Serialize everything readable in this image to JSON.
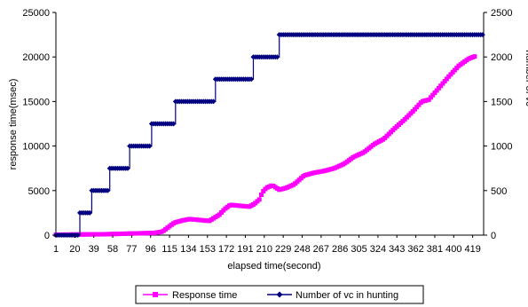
{
  "chart_data": {
    "type": "line",
    "title": "",
    "xlabel": "elapsed time(second)",
    "ylabel": "response time(msec)",
    "y2label": "number of vc",
    "x_range": [
      1,
      430
    ],
    "ylim": [
      0,
      25000
    ],
    "y2lim": [
      0,
      2500
    ],
    "y_ticks": [
      "0",
      "5000",
      "10000",
      "15000",
      "20000",
      "25000"
    ],
    "y2_ticks": [
      "0",
      "500",
      "1000",
      "1500",
      "2000",
      "2500"
    ],
    "x_tick_labels": [
      "1",
      "20",
      "39",
      "58",
      "77",
      "96",
      "115",
      "134",
      "153",
      "172",
      "191",
      "210",
      "229",
      "248",
      "267",
      "286",
      "305",
      "324",
      "343",
      "362",
      "381",
      "400",
      "419"
    ],
    "grid": false,
    "legend_position": "bottom",
    "series": [
      {
        "name": "Response time",
        "axis": "left",
        "color": "#ff00ff",
        "marker": "square",
        "x": [
          1,
          50,
          100,
          108,
          115,
          120,
          128,
          135,
          145,
          155,
          165,
          170,
          176,
          185,
          195,
          200,
          205,
          208,
          212,
          218,
          225,
          232,
          240,
          250,
          260,
          270,
          280,
          290,
          300,
          310,
          320,
          330,
          340,
          350,
          360,
          368,
          375,
          385,
          395,
          405,
          415,
          422
        ],
        "values": [
          50,
          100,
          250,
          400,
          1000,
          1400,
          1650,
          1800,
          1700,
          1600,
          2300,
          2900,
          3400,
          3300,
          3200,
          3500,
          4000,
          4800,
          5300,
          5600,
          5100,
          5300,
          5700,
          6700,
          7000,
          7200,
          7500,
          8000,
          8800,
          9300,
          10200,
          10800,
          11900,
          12900,
          14000,
          15000,
          15200,
          16500,
          17800,
          19000,
          19800,
          20100
        ]
      },
      {
        "name": "Number of vc in hunting",
        "axis": "right",
        "color": "#000080",
        "marker": "diamond",
        "steps": [
          [
            1,
            0
          ],
          [
            24,
            250
          ],
          [
            37,
            500
          ],
          [
            55,
            750
          ],
          [
            75,
            1000
          ],
          [
            97,
            1250
          ],
          [
            120,
            1500
          ],
          [
            160,
            1750
          ],
          [
            198,
            2000
          ],
          [
            225,
            2250
          ],
          [
            430,
            2250
          ]
        ]
      }
    ]
  }
}
